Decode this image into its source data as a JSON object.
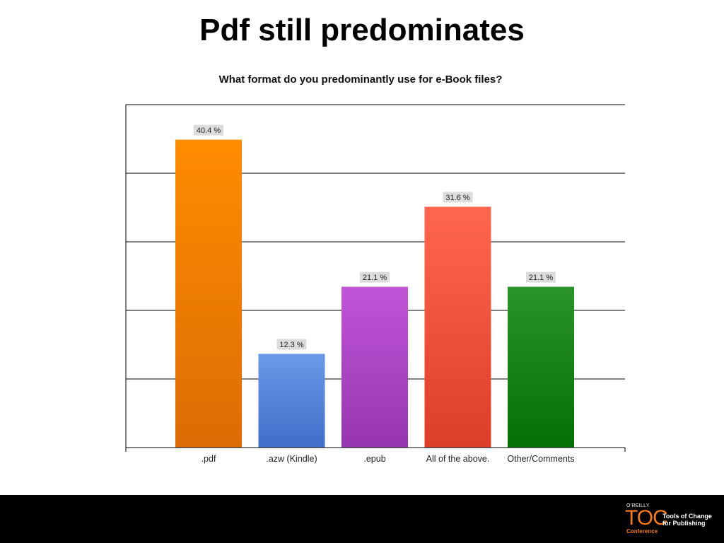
{
  "slide": {
    "title": "Pdf still predominates"
  },
  "chart_data": {
    "type": "bar",
    "title": "What format do you predominantly use for e-Book files?",
    "categories": [
      ".pdf",
      ".azw (Kindle)",
      ".epub",
      "All of the above.",
      "Other/Comments"
    ],
    "values": [
      40.4,
      12.3,
      21.1,
      31.6,
      21.1
    ],
    "data_labels": [
      "40.4 %",
      "12.3 %",
      "21.1 %",
      "31.6 %",
      "21.1 %"
    ],
    "colors": [
      [
        "#ff8c00",
        "#dc6c04"
      ],
      [
        "#6b9ae8",
        "#3f6ec8"
      ],
      [
        "#c055d8",
        "#9635b0"
      ],
      [
        "#ff6650",
        "#dc3e28"
      ],
      [
        "#2a932a",
        "#047004"
      ]
    ],
    "ylim": [
      0,
      45
    ],
    "grid": true,
    "xlabel": "",
    "ylabel": ""
  },
  "footer": {
    "logo_publisher": "O'REILLY",
    "logo_mark": "TOC",
    "logo_tagline": "Tools of Change for Publishing",
    "logo_sub": "Conference"
  }
}
